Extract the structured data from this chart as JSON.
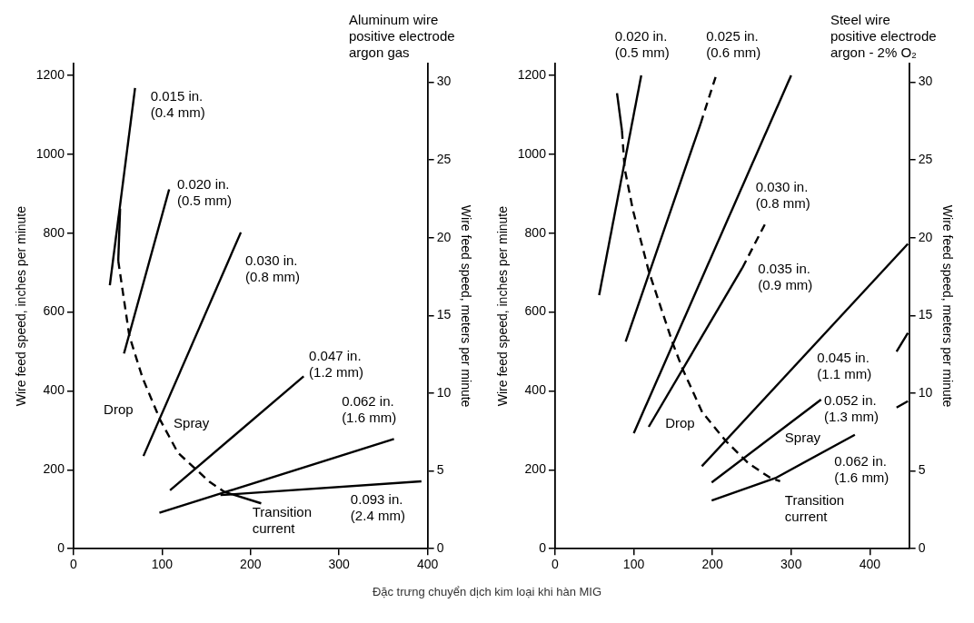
{
  "chart_data": [
    {
      "type": "line",
      "title": "Aluminum wire\npositive electrode\nargon gas",
      "ylabel": "Wire feed speed, inches per minute",
      "y2label": "Wire feed speed, meters per minute",
      "xlim": [
        0,
        400
      ],
      "xticks": [
        0,
        100,
        200,
        300,
        400
      ],
      "ylim": [
        0,
        1230
      ],
      "yticks": [
        0,
        200,
        400,
        600,
        800,
        1000,
        1200
      ],
      "y2lim": [
        0,
        31.2
      ],
      "y2ticks": [
        0,
        5,
        10,
        15,
        20,
        25,
        30
      ],
      "legend": false,
      "marker": "none",
      "series": [
        {
          "name": "0.015 in.\n(0.4 mm)",
          "color": "#000000",
          "line_style": "solid",
          "x": [
            41,
            69.5
          ],
          "values": [
            668,
            1168
          ]
        },
        {
          "name": "0.020 in.\n(0.5 mm)",
          "color": "#000000",
          "line_style": "solid",
          "x": [
            57,
            108
          ],
          "values": [
            495,
            911
          ]
        },
        {
          "name": "0.030 in.\n(0.8 mm)",
          "color": "#000000",
          "line_style": "solid",
          "x": [
            79,
            189
          ],
          "values": [
            235,
            802
          ]
        },
        {
          "name": "0.047 in.\n(1.2 mm)",
          "color": "#000000",
          "line_style": "solid",
          "x": [
            109,
            260
          ],
          "values": [
            148,
            437
          ]
        },
        {
          "name": "0.062 in.\n(1.6 mm)",
          "color": "#000000",
          "line_style": "solid",
          "x": [
            97,
            362
          ],
          "values": [
            91,
            278
          ]
        },
        {
          "name": "0.093 in.\n(2.4 mm)",
          "color": "#000000",
          "line_style": "solid",
          "x": [
            166,
            393
          ],
          "values": [
            136,
            171
          ]
        },
        {
          "color": "#000000",
          "line_style": "solid",
          "x": [
            52.6,
            50.5
          ],
          "values": [
            862,
            730
          ]
        },
        {
          "color": "#000000",
          "line_style": "dashed",
          "x": [
            50.5,
            63,
            78,
            98,
            118,
            137,
            154,
            170.5
          ],
          "values": [
            730,
            540,
            433,
            326,
            243,
            204,
            169,
            144
          ]
        },
        {
          "color": "#000000",
          "line_style": "solid",
          "x": [
            170.5,
            212
          ],
          "values": [
            144,
            115
          ]
        }
      ],
      "annotations": [
        "Drop",
        "Spray",
        "Transition\ncurrent"
      ]
    },
    {
      "type": "line",
      "title": "Steel wire\npositive electrode\nargon - 2% O₂",
      "ylabel": "Wire feed speed, inches per minute",
      "y2label": "Wire feed speed, meters per minute",
      "xlim": [
        0,
        450
      ],
      "xticks": [
        0,
        100,
        200,
        300,
        400
      ],
      "ylim": [
        0,
        1230
      ],
      "yticks": [
        0,
        200,
        400,
        600,
        800,
        1000,
        1200
      ],
      "y2lim": [
        0,
        31.2
      ],
      "y2ticks": [
        0,
        5,
        10,
        15,
        20,
        25,
        30
      ],
      "legend": false,
      "marker": "none",
      "series": [
        {
          "name": "0.020 in.\n(0.5 mm)",
          "color": "#000000",
          "line_style": "solid",
          "x": [
            56,
            109.5
          ],
          "values": [
            643,
            1200
          ]
        },
        {
          "color": "#000000",
          "line_style": "solid",
          "x": [
            89.7,
            185
          ],
          "values": [
            525,
            1078
          ]
        },
        {
          "name": "0.025 in.\n(0.6 mm)",
          "color": "#000000",
          "line_style": "dashed",
          "x": [
            185,
            204
          ],
          "values": [
            1078,
            1196
          ]
        },
        {
          "name": "0.030 in.\n(0.8 mm)",
          "color": "#000000",
          "line_style": "solid",
          "x": [
            100,
            300
          ],
          "values": [
            293,
            1200
          ]
        },
        {
          "name": "0.035 in.\n(0.9 mm)",
          "color": "#000000",
          "line_style": "solid",
          "x": [
            119,
            238
          ],
          "values": [
            309,
            712
          ]
        },
        {
          "color": "#000000",
          "line_style": "dashed",
          "x": [
            238,
            266.5
          ],
          "values": [
            712,
            822
          ]
        },
        {
          "name": "0.045 in.\n(1.1 mm)",
          "color": "#000000",
          "line_style": "solid",
          "x": [
            186.5,
            448.4
          ],
          "values": [
            209,
            773
          ]
        },
        {
          "name": "0.052 in.\n(1.3 mm)",
          "color": "#000000",
          "line_style": "solid",
          "x": [
            199,
            338,
            386,
            434,
            448.4
          ],
          "values": [
            168,
            378,
            null,
            500,
            547
          ]
        },
        {
          "name": "0.062 in.\n(1.6 mm)",
          "color": "#000000",
          "line_style": "solid",
          "x": [
            199,
            280,
            381,
            410,
            434,
            448.4
          ],
          "values": [
            122,
            179,
            289,
            null,
            358,
            374
          ]
        },
        {
          "color": "#000000",
          "line_style": "solid",
          "x": [
            78.7,
            85
          ],
          "values": [
            1155,
            1060
          ]
        },
        {
          "color": "#000000",
          "line_style": "dashed",
          "x": [
            85,
            88.4,
            99,
            119,
            149.5,
            162,
            187,
            217,
            246,
            274,
            286
          ],
          "values": [
            1060,
            964,
            858,
            704,
            521,
            456,
            346,
            273,
            216,
            179,
            171
          ]
        }
      ],
      "annotations": [
        "Drop",
        "Spray",
        "Transition\ncurrent",
        "Đặc trưng chuyển dịch kim loại khi hàn MIG"
      ]
    }
  ]
}
